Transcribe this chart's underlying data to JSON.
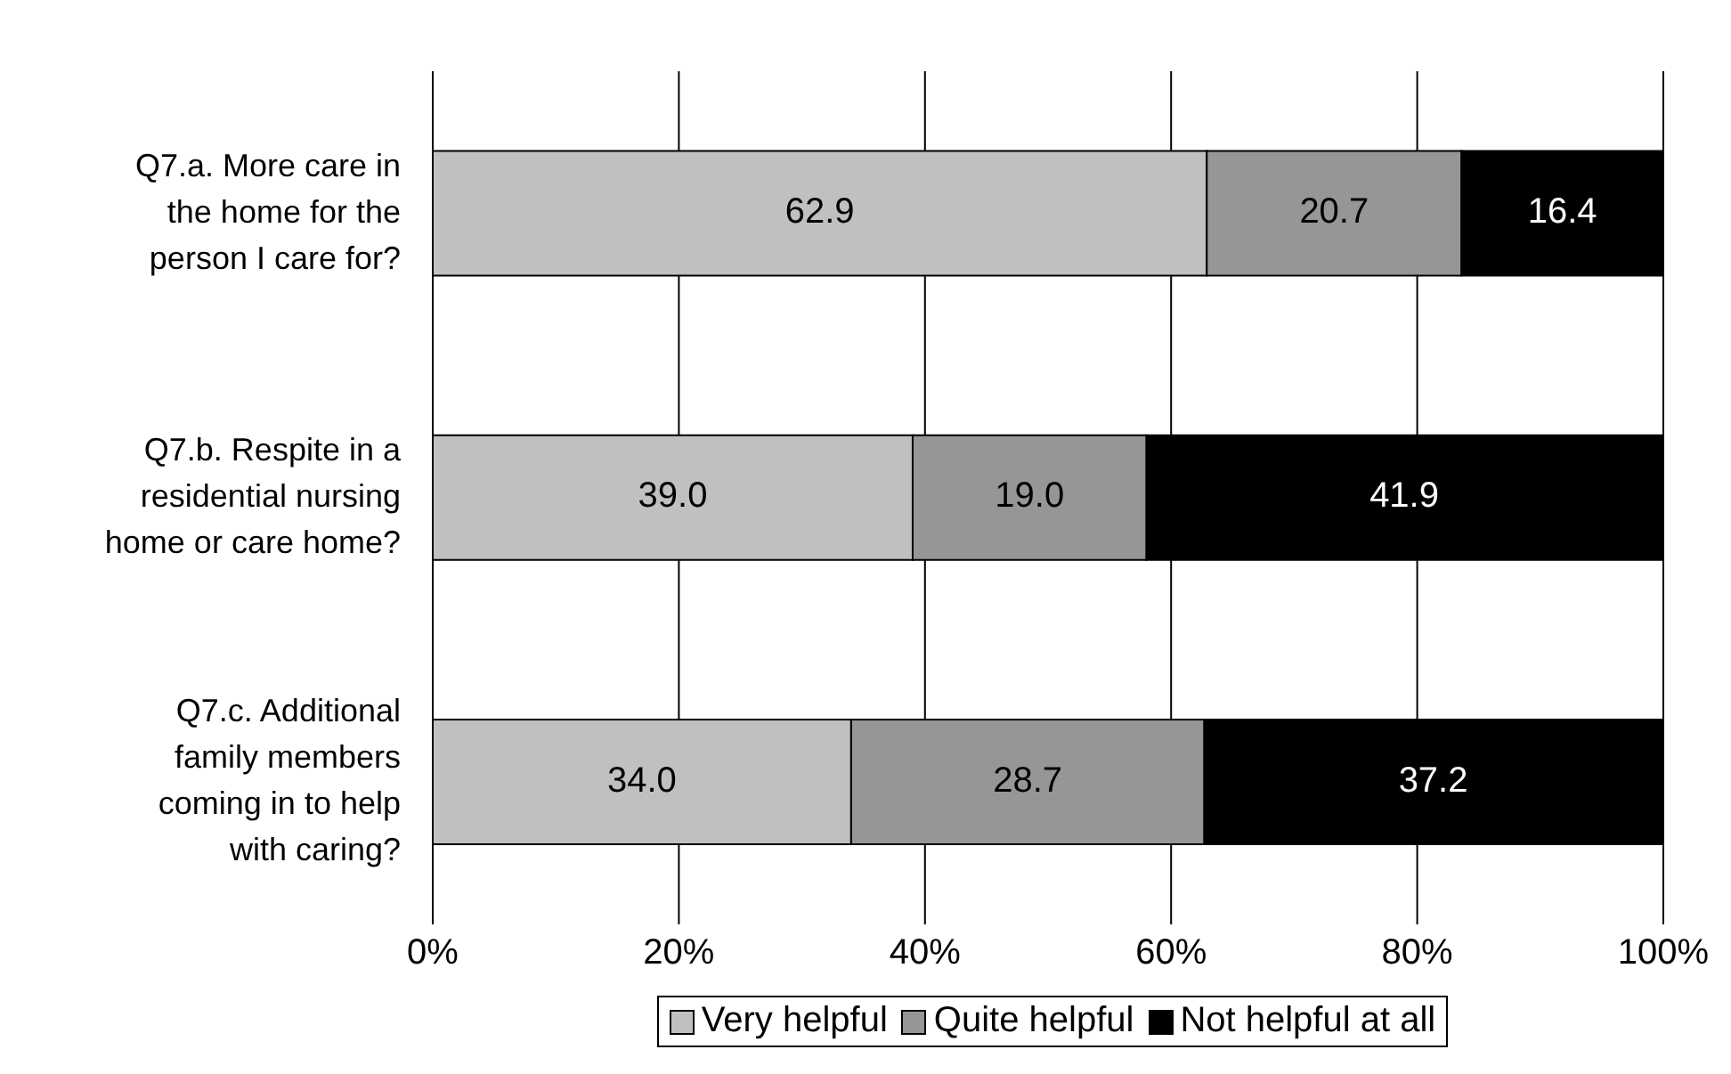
{
  "chart_data": {
    "type": "bar",
    "orientation": "horizontal",
    "stacked": true,
    "categories": [
      "Q7.a. More care in the home for the person I care for?",
      "Q7.b. Respite in a residential nursing home or care home?",
      "Q7.c. Additional family members coming in to help with caring?"
    ],
    "series": [
      {
        "name": "Very helpful",
        "color": "#c0c0c0",
        "values": [
          62.9,
          39.0,
          34.0
        ],
        "value_labels": [
          "62.9",
          "39.0",
          "34.0"
        ]
      },
      {
        "name": "Quite helpful",
        "color": "#969696",
        "values": [
          20.7,
          19.0,
          28.7
        ],
        "value_labels": [
          "20.7",
          "19.0",
          "28.7"
        ]
      },
      {
        "name": "Not helpful at all",
        "color": "#000000",
        "values": [
          16.4,
          41.9,
          37.2
        ],
        "value_labels": [
          "16.4",
          "41.9",
          "37.2"
        ]
      }
    ],
    "xlim": [
      0,
      100
    ],
    "xticks": [
      {
        "value": 0,
        "label": "0%"
      },
      {
        "value": 20,
        "label": "20%"
      },
      {
        "value": 40,
        "label": "40%"
      },
      {
        "value": 60,
        "label": "60%"
      },
      {
        "value": 80,
        "label": "80%"
      },
      {
        "value": 100,
        "label": "100%"
      }
    ],
    "grid": "x",
    "legend": "bottom"
  }
}
